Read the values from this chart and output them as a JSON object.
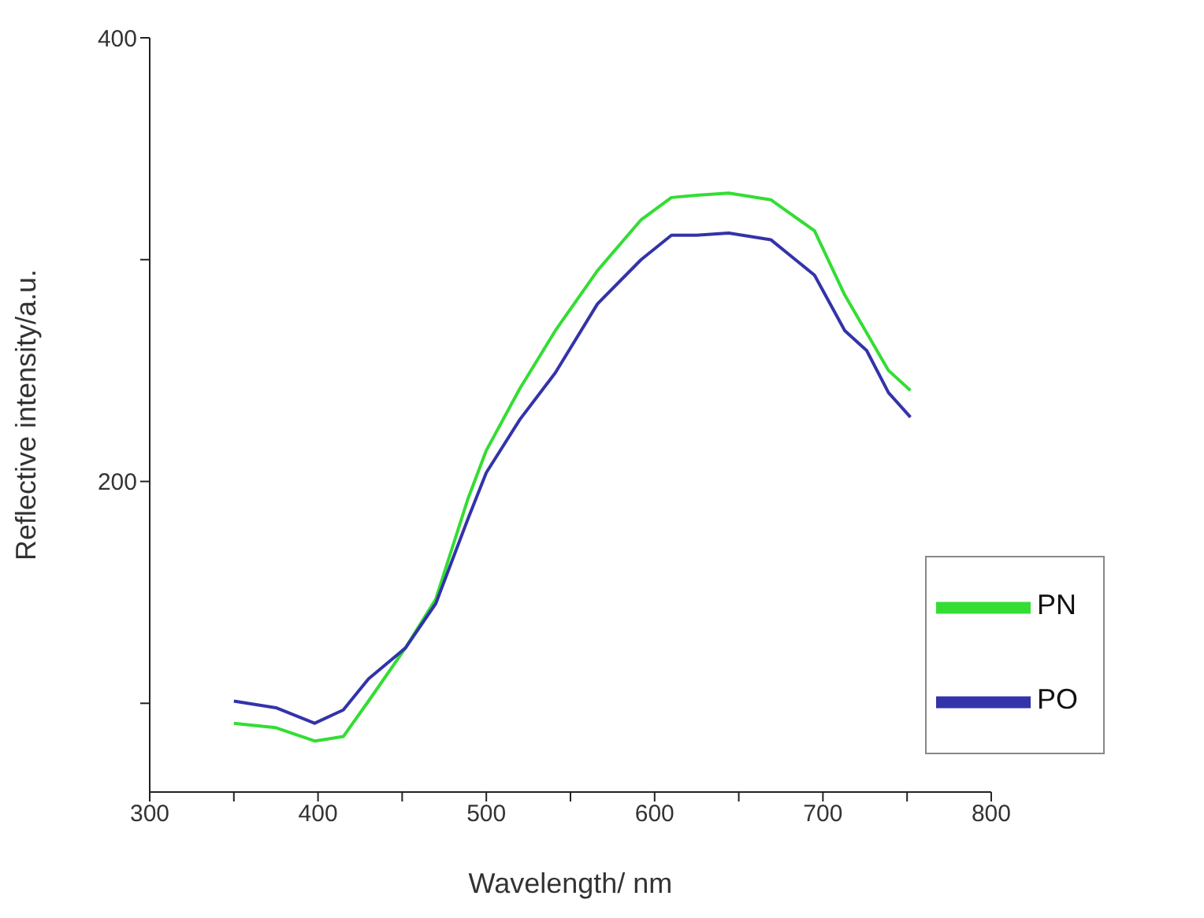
{
  "chart_data": {
    "type": "line",
    "xlabel": "Wavelength/ nm",
    "ylabel": "Reflective intensity/a.u.",
    "x": [
      350,
      375,
      398,
      415,
      430,
      452,
      470,
      489,
      500,
      520,
      541,
      566,
      592,
      610,
      625,
      644,
      669,
      695,
      713,
      726,
      739,
      752
    ],
    "series": [
      {
        "name": "PN",
        "color": "#33dd33",
        "values": [
          91,
          89,
          83,
          85,
          101,
          125,
          147,
          192,
          214,
          242,
          268,
          295,
          318,
          328,
          329,
          330,
          327,
          313,
          284,
          267,
          250,
          241
        ]
      },
      {
        "name": "PO",
        "color": "#3333aa",
        "values": [
          101,
          98,
          91,
          97,
          111,
          125,
          145,
          183,
          204,
          228,
          249,
          280,
          300,
          311,
          311,
          312,
          309,
          293,
          268,
          259,
          240,
          229
        ]
      }
    ],
    "xlim": [
      300,
      800
    ],
    "xticks": [
      300,
      {
        "value": 350,
        "label": null
      },
      400,
      {
        "value": 450,
        "label": null
      },
      500,
      {
        "value": 550,
        "label": null
      },
      600,
      {
        "value": 650,
        "label": null
      },
      700,
      {
        "value": 750,
        "label": null
      },
      800
    ],
    "ylim": [
      60,
      400
    ],
    "yticks": [
      {
        "value": 100,
        "label": null
      },
      200,
      {
        "value": 300,
        "label": null
      },
      400
    ],
    "grid": false,
    "legend": "right",
    "marker": "none",
    "line_style": "solid"
  }
}
